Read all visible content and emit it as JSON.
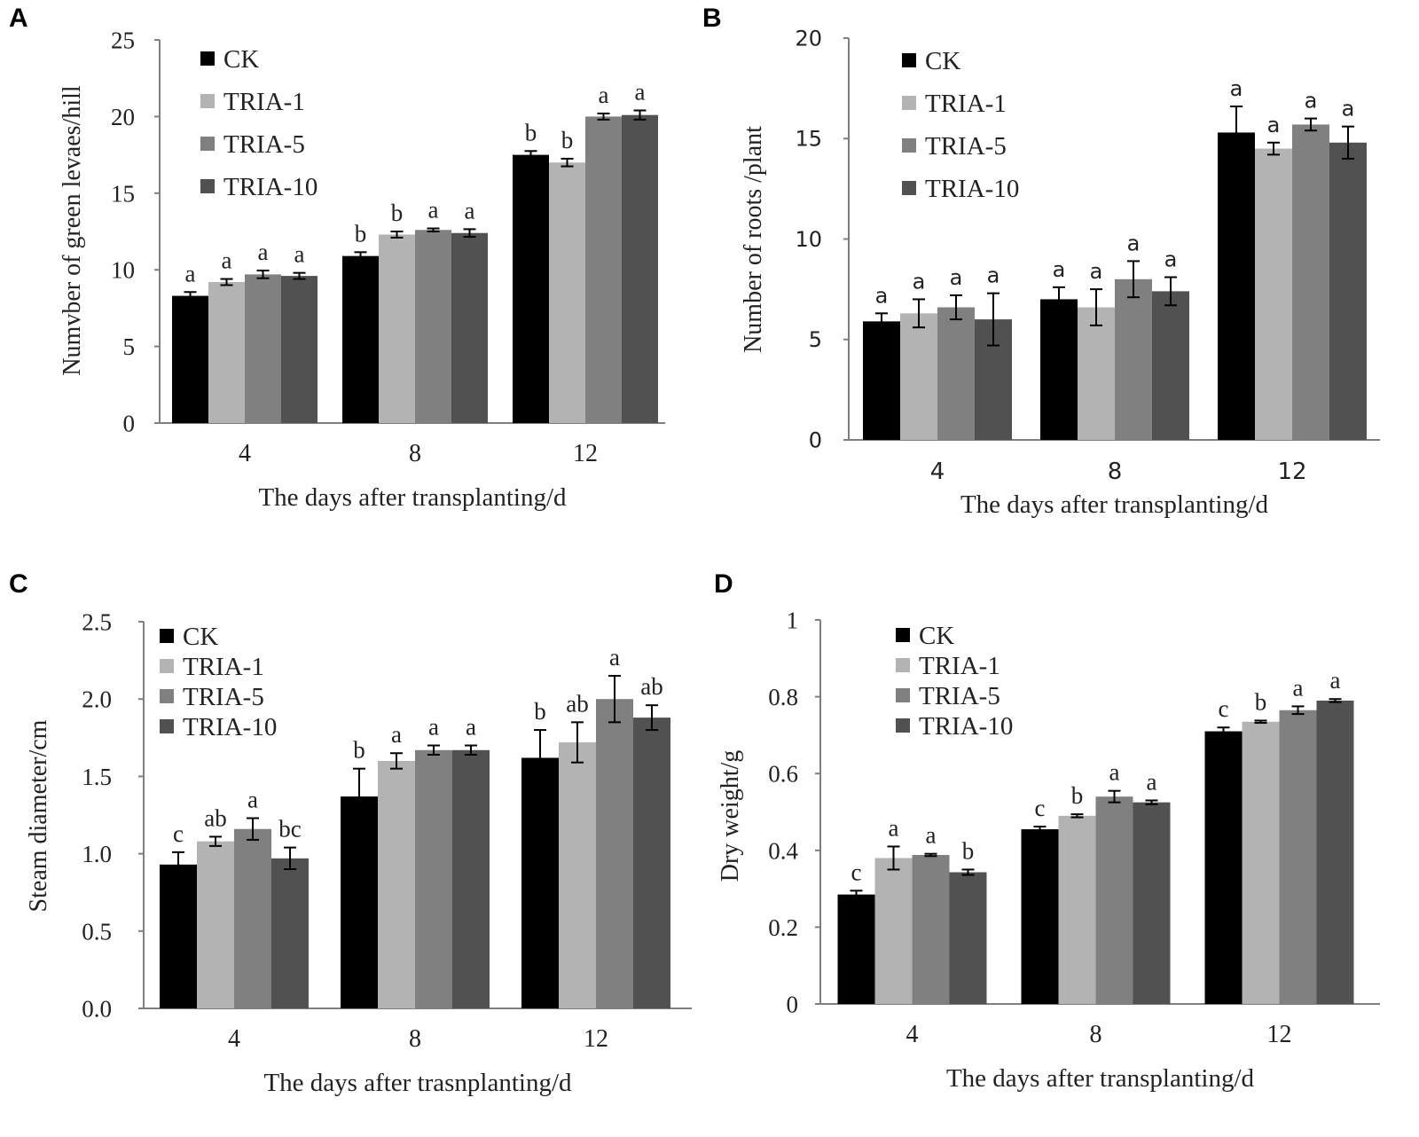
{
  "colors": {
    "CK": "#000000",
    "TRIA-1": "#b3b3b3",
    "TRIA-5": "#808080",
    "TRIA-10": "#515151",
    "axis": "#7f7f7f",
    "text": "#222222"
  },
  "chart_data": [
    {
      "panel": "A",
      "type": "bar",
      "categories": [
        "4",
        "8",
        "12"
      ],
      "xlabel": "The days after transplanting/d",
      "ylabel": "Numvber of green levaes/hill",
      "ylim": [
        0,
        25
      ],
      "yticks": [
        "0",
        "5",
        "10",
        "15",
        "20",
        "25"
      ],
      "legend": [
        "CK",
        "TRIA-1",
        "TRIA-5",
        "TRIA-10"
      ],
      "series": [
        {
          "name": "CK",
          "values": [
            8.3,
            10.9,
            17.5
          ],
          "errors": [
            0.25,
            0.25,
            0.25
          ],
          "labels": [
            "a",
            "b",
            "b"
          ]
        },
        {
          "name": "TRIA-1",
          "values": [
            9.2,
            12.3,
            17.0
          ],
          "errors": [
            0.2,
            0.2,
            0.25
          ],
          "labels": [
            "a",
            "b",
            "b"
          ]
        },
        {
          "name": "TRIA-5",
          "values": [
            9.7,
            12.6,
            20.0
          ],
          "errors": [
            0.25,
            0.1,
            0.2
          ],
          "labels": [
            "a",
            "a",
            "a"
          ]
        },
        {
          "name": "TRIA-10",
          "values": [
            9.6,
            12.4,
            20.1
          ],
          "errors": [
            0.2,
            0.25,
            0.3
          ],
          "labels": [
            "a",
            "a",
            "a"
          ]
        }
      ]
    },
    {
      "panel": "B",
      "type": "bar",
      "categories": [
        "4",
        "8",
        "12"
      ],
      "xlabel": "The days after transplanting/d",
      "ylabel": "Number of roots /plant",
      "ylim": [
        0,
        20
      ],
      "yticks": [
        "0",
        "5",
        "10",
        "15",
        "20"
      ],
      "legend": [
        "CK",
        "TRIA-1",
        "TRIA-5",
        "TRIA-10"
      ],
      "series": [
        {
          "name": "CK",
          "values": [
            5.9,
            7.0,
            15.3
          ],
          "errors": [
            0.4,
            0.6,
            1.3
          ],
          "labels": [
            "a",
            "a",
            "a"
          ]
        },
        {
          "name": "TRIA-1",
          "values": [
            6.3,
            6.6,
            14.5
          ],
          "errors": [
            0.7,
            0.9,
            0.3
          ],
          "labels": [
            "a",
            "a",
            "a"
          ]
        },
        {
          "name": "TRIA-5",
          "values": [
            6.6,
            8.0,
            15.7
          ],
          "errors": [
            0.6,
            0.9,
            0.3
          ],
          "labels": [
            "a",
            "a",
            "a"
          ]
        },
        {
          "name": "TRIA-10",
          "values": [
            6.0,
            7.4,
            14.8
          ],
          "errors": [
            1.3,
            0.7,
            0.8
          ],
          "labels": [
            "a",
            "a",
            "a"
          ]
        }
      ]
    },
    {
      "panel": "C",
      "type": "bar",
      "categories": [
        "4",
        "8",
        "12"
      ],
      "xlabel": "The days after trasnplanting/d",
      "ylabel": "Steam diameter/cm",
      "ylim": [
        0,
        2.5
      ],
      "yticks": [
        "0.0",
        "0.5",
        "1.0",
        "1.5",
        "2.0",
        "2.5"
      ],
      "legend": [
        "CK",
        "TRIA-1",
        "TRIA-5",
        "TRIA-10"
      ],
      "series": [
        {
          "name": "CK",
          "values": [
            0.93,
            1.37,
            1.62
          ],
          "errors": [
            0.08,
            0.18,
            0.18
          ],
          "labels": [
            "c",
            "b",
            "b"
          ]
        },
        {
          "name": "TRIA-1",
          "values": [
            1.08,
            1.6,
            1.72
          ],
          "errors": [
            0.03,
            0.05,
            0.13
          ],
          "labels": [
            "ab",
            "a",
            "ab"
          ]
        },
        {
          "name": "TRIA-5",
          "values": [
            1.16,
            1.67,
            2.0
          ],
          "errors": [
            0.07,
            0.03,
            0.15
          ],
          "labels": [
            "a",
            "a",
            "a"
          ]
        },
        {
          "name": "TRIA-10",
          "values": [
            0.97,
            1.67,
            1.88
          ],
          "errors": [
            0.07,
            0.03,
            0.08
          ],
          "labels": [
            "bc",
            "a",
            "ab"
          ]
        }
      ]
    },
    {
      "panel": "D",
      "type": "bar",
      "categories": [
        "4",
        "8",
        "12"
      ],
      "xlabel": "The days after transplanting/d",
      "ylabel": "Dry weight/g",
      "ylim": [
        0,
        1
      ],
      "yticks": [
        "0",
        "0.2",
        "0.4",
        "0.6",
        "0.8",
        "1"
      ],
      "legend": [
        "CK",
        "TRIA-1",
        "TRIA-5",
        "TRIA-10"
      ],
      "series": [
        {
          "name": "CK",
          "values": [
            0.285,
            0.455,
            0.71
          ],
          "errors": [
            0.01,
            0.007,
            0.01
          ],
          "labels": [
            "c",
            "c",
            "c"
          ]
        },
        {
          "name": "TRIA-1",
          "values": [
            0.38,
            0.49,
            0.735
          ],
          "errors": [
            0.03,
            0.004,
            0.003
          ],
          "labels": [
            "a",
            "b",
            "b"
          ]
        },
        {
          "name": "TRIA-5",
          "values": [
            0.388,
            0.54,
            0.765
          ],
          "errors": [
            0.003,
            0.015,
            0.01
          ],
          "labels": [
            "a",
            "a",
            "a"
          ]
        },
        {
          "name": "TRIA-10",
          "values": [
            0.343,
            0.525,
            0.79
          ],
          "errors": [
            0.007,
            0.005,
            0.004
          ],
          "labels": [
            "b",
            "a",
            "a"
          ]
        }
      ]
    }
  ]
}
